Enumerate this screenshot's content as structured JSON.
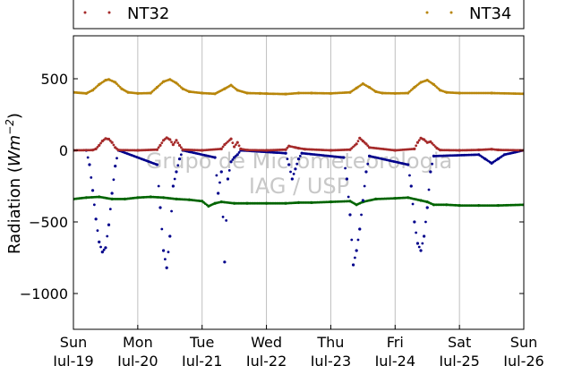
{
  "chart_data": {
    "type": "scatter",
    "title": "",
    "xlabel": "",
    "ylabel": "Radiation (Wm⁻²)",
    "ylabel_text": "Radiation (",
    "ylabel_unit": "Wm",
    "ylabel_exp": "−2",
    "ylabel_close": ")",
    "ylim": [
      -1250,
      800
    ],
    "xlim": [
      0,
      7
    ],
    "grid": "vertical",
    "legend_placement": "top",
    "y_ticks": [
      {
        "value": 500,
        "label": "500"
      },
      {
        "value": 0,
        "label": "0"
      },
      {
        "value": -500,
        "label": "−500"
      },
      {
        "value": -1000,
        "label": "−1000"
      }
    ],
    "x_ticks": [
      {
        "value": 0,
        "day": "Sun",
        "date": "Jul-19"
      },
      {
        "value": 1,
        "day": "Mon",
        "date": "Jul-20"
      },
      {
        "value": 2,
        "day": "Tue",
        "date": "Jul-21"
      },
      {
        "value": 3,
        "day": "Wed",
        "date": "Jul-22"
      },
      {
        "value": 4,
        "day": "Thu",
        "date": "Jul-23"
      },
      {
        "value": 5,
        "day": "Fri",
        "date": "Jul-24"
      },
      {
        "value": 6,
        "day": "Sat",
        "date": "Jul-25"
      },
      {
        "value": 7,
        "day": "Sun",
        "date": "Jul-26"
      }
    ],
    "series": [
      {
        "name": "NT32",
        "color": "#a52a2a",
        "values": [
          [
            0.0,
            0
          ],
          [
            0.3,
            2
          ],
          [
            0.35,
            10
          ],
          [
            0.4,
            35
          ],
          [
            0.45,
            65
          ],
          [
            0.5,
            82
          ],
          [
            0.55,
            78
          ],
          [
            0.6,
            55
          ],
          [
            0.65,
            20
          ],
          [
            0.7,
            2
          ],
          [
            1.0,
            0
          ],
          [
            1.3,
            5
          ],
          [
            1.35,
            35
          ],
          [
            1.4,
            70
          ],
          [
            1.45,
            88
          ],
          [
            1.5,
            75
          ],
          [
            1.55,
            40
          ],
          [
            1.6,
            70
          ],
          [
            1.65,
            35
          ],
          [
            1.7,
            5
          ],
          [
            2.0,
            0
          ],
          [
            2.3,
            10
          ],
          [
            2.35,
            40
          ],
          [
            2.45,
            80
          ],
          [
            2.5,
            25
          ],
          [
            2.55,
            55
          ],
          [
            2.6,
            10
          ],
          [
            2.7,
            2
          ],
          [
            3.0,
            0
          ],
          [
            3.3,
            5
          ],
          [
            3.35,
            30
          ],
          [
            3.45,
            20
          ],
          [
            3.5,
            15
          ],
          [
            3.6,
            8
          ],
          [
            4.0,
            0
          ],
          [
            4.3,
            5
          ],
          [
            4.4,
            45
          ],
          [
            4.45,
            85
          ],
          [
            4.5,
            65
          ],
          [
            4.55,
            45
          ],
          [
            4.6,
            20
          ],
          [
            5.0,
            0
          ],
          [
            5.3,
            10
          ],
          [
            5.35,
            55
          ],
          [
            5.4,
            85
          ],
          [
            5.45,
            75
          ],
          [
            5.5,
            55
          ],
          [
            5.55,
            60
          ],
          [
            5.65,
            15
          ],
          [
            5.7,
            2
          ],
          [
            6.0,
            0
          ],
          [
            6.3,
            3
          ],
          [
            6.5,
            8
          ],
          [
            6.6,
            3
          ],
          [
            7.0,
            0
          ]
        ]
      },
      {
        "name": "NT34",
        "color": "#b8860b",
        "values": [
          [
            0.0,
            405
          ],
          [
            0.2,
            398
          ],
          [
            0.3,
            420
          ],
          [
            0.4,
            460
          ],
          [
            0.5,
            490
          ],
          [
            0.55,
            495
          ],
          [
            0.65,
            475
          ],
          [
            0.75,
            430
          ],
          [
            0.85,
            405
          ],
          [
            1.0,
            398
          ],
          [
            1.2,
            400
          ],
          [
            1.3,
            440
          ],
          [
            1.4,
            480
          ],
          [
            1.5,
            495
          ],
          [
            1.6,
            470
          ],
          [
            1.7,
            430
          ],
          [
            1.8,
            410
          ],
          [
            2.0,
            400
          ],
          [
            2.2,
            395
          ],
          [
            2.35,
            430
          ],
          [
            2.45,
            455
          ],
          [
            2.55,
            420
          ],
          [
            2.7,
            400
          ],
          [
            2.9,
            398
          ],
          [
            3.0,
            396
          ],
          [
            3.3,
            393
          ],
          [
            3.5,
            400
          ],
          [
            3.7,
            400
          ],
          [
            4.0,
            398
          ],
          [
            4.3,
            405
          ],
          [
            4.4,
            435
          ],
          [
            4.5,
            465
          ],
          [
            4.6,
            440
          ],
          [
            4.7,
            410
          ],
          [
            4.8,
            400
          ],
          [
            5.0,
            398
          ],
          [
            5.2,
            400
          ],
          [
            5.3,
            440
          ],
          [
            5.4,
            475
          ],
          [
            5.5,
            490
          ],
          [
            5.6,
            460
          ],
          [
            5.7,
            420
          ],
          [
            5.8,
            405
          ],
          [
            6.0,
            400
          ],
          [
            6.5,
            400
          ],
          [
            7.0,
            395
          ]
        ]
      },
      {
        "name": "",
        "color": "#00008b",
        "values": [
          [
            0.2,
            0
          ],
          [
            0.25,
            -100
          ],
          [
            0.3,
            -280
          ],
          [
            0.35,
            -480
          ],
          [
            0.4,
            -640
          ],
          [
            0.45,
            -710
          ],
          [
            0.5,
            -680
          ],
          [
            0.55,
            -520
          ],
          [
            0.6,
            -300
          ],
          [
            0.65,
            -110
          ],
          [
            0.7,
            0
          ],
          [
            1.3,
            -100
          ],
          [
            1.35,
            -400
          ],
          [
            1.4,
            -700
          ],
          [
            1.45,
            -820
          ],
          [
            1.5,
            -600
          ],
          [
            1.55,
            -250
          ],
          [
            1.6,
            -150
          ],
          [
            1.65,
            -60
          ],
          [
            1.7,
            0
          ],
          [
            2.2,
            -50
          ],
          [
            2.25,
            -300
          ],
          [
            2.3,
            -150
          ],
          [
            2.35,
            -780
          ],
          [
            2.4,
            -200
          ],
          [
            2.45,
            -80
          ],
          [
            2.5,
            -50
          ],
          [
            2.55,
            -30
          ],
          [
            2.6,
            0
          ],
          [
            3.3,
            -20
          ],
          [
            3.35,
            -100
          ],
          [
            3.4,
            -200
          ],
          [
            3.45,
            -130
          ],
          [
            3.5,
            -60
          ],
          [
            3.55,
            -20
          ],
          [
            4.2,
            -50
          ],
          [
            4.25,
            -200
          ],
          [
            4.3,
            -450
          ],
          [
            4.35,
            -800
          ],
          [
            4.4,
            -700
          ],
          [
            4.45,
            -550
          ],
          [
            4.5,
            -350
          ],
          [
            4.55,
            -150
          ],
          [
            4.6,
            -40
          ],
          [
            5.2,
            -100
          ],
          [
            5.25,
            -250
          ],
          [
            5.3,
            -500
          ],
          [
            5.35,
            -650
          ],
          [
            5.4,
            -700
          ],
          [
            5.45,
            -600
          ],
          [
            5.5,
            -400
          ],
          [
            5.55,
            -150
          ],
          [
            5.6,
            -40
          ],
          [
            6.3,
            -30
          ],
          [
            6.4,
            -60
          ],
          [
            6.5,
            -90
          ],
          [
            6.6,
            -60
          ],
          [
            6.7,
            -30
          ],
          [
            7.0,
            0
          ]
        ]
      },
      {
        "name": "",
        "color": "#006400",
        "values": [
          [
            0.0,
            -340
          ],
          [
            0.2,
            -330
          ],
          [
            0.4,
            -325
          ],
          [
            0.6,
            -340
          ],
          [
            0.8,
            -340
          ],
          [
            1.0,
            -330
          ],
          [
            1.2,
            -325
          ],
          [
            1.4,
            -330
          ],
          [
            1.6,
            -340
          ],
          [
            1.8,
            -345
          ],
          [
            2.0,
            -355
          ],
          [
            2.1,
            -390
          ],
          [
            2.2,
            -370
          ],
          [
            2.3,
            -360
          ],
          [
            2.5,
            -370
          ],
          [
            2.7,
            -370
          ],
          [
            3.0,
            -370
          ],
          [
            3.3,
            -370
          ],
          [
            3.5,
            -365
          ],
          [
            3.7,
            -365
          ],
          [
            4.0,
            -360
          ],
          [
            4.3,
            -355
          ],
          [
            4.4,
            -380
          ],
          [
            4.5,
            -360
          ],
          [
            4.7,
            -340
          ],
          [
            5.0,
            -335
          ],
          [
            5.2,
            -330
          ],
          [
            5.4,
            -350
          ],
          [
            5.5,
            -360
          ],
          [
            5.6,
            -380
          ],
          [
            5.8,
            -380
          ],
          [
            6.0,
            -385
          ],
          [
            6.3,
            -385
          ],
          [
            6.6,
            -385
          ],
          [
            7.0,
            -380
          ]
        ]
      }
    ],
    "watermark": [
      "Grupo de Micrometeorologia",
      "IAG / USP"
    ]
  }
}
